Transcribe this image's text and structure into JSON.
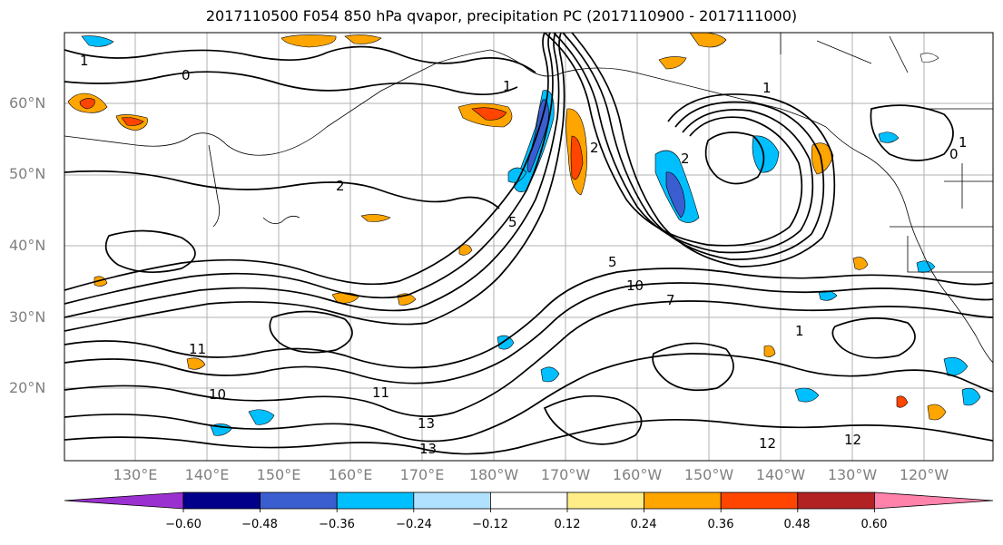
{
  "title": "2017110500 F054 850 hPa qvapor, precipitation PC (2017110900 - 2017111000)",
  "lat_labels": [
    "60°N",
    "50°N",
    "40°N",
    "30°N",
    "20°N"
  ],
  "lon_labels": [
    "130°E",
    "140°E",
    "150°E",
    "160°E",
    "170°E",
    "180°W",
    "170°W",
    "160°W",
    "150°W",
    "140°W",
    "130°W",
    "120°W"
  ],
  "colorbar": {
    "ticks": [
      "−0.60",
      "−0.48",
      "−0.36",
      "−0.24",
      "−0.12",
      "0.12",
      "0.24",
      "0.36",
      "0.48",
      "0.60"
    ],
    "colors": [
      "#9b30d0",
      "#00008b",
      "#3a5ecf",
      "#00bfff",
      "#b0e2ff",
      "#ffffff",
      "#ffee88",
      "#ffa500",
      "#ff4500",
      "#b22222",
      "#ff82ab"
    ]
  },
  "contour_labels": [
    "1",
    "2",
    "1",
    "0",
    "2",
    "5",
    "10",
    "11",
    "13",
    "12",
    "12",
    "10",
    "11",
    "5",
    "2",
    "1",
    "1",
    "7",
    "13",
    "0",
    "1"
  ]
}
